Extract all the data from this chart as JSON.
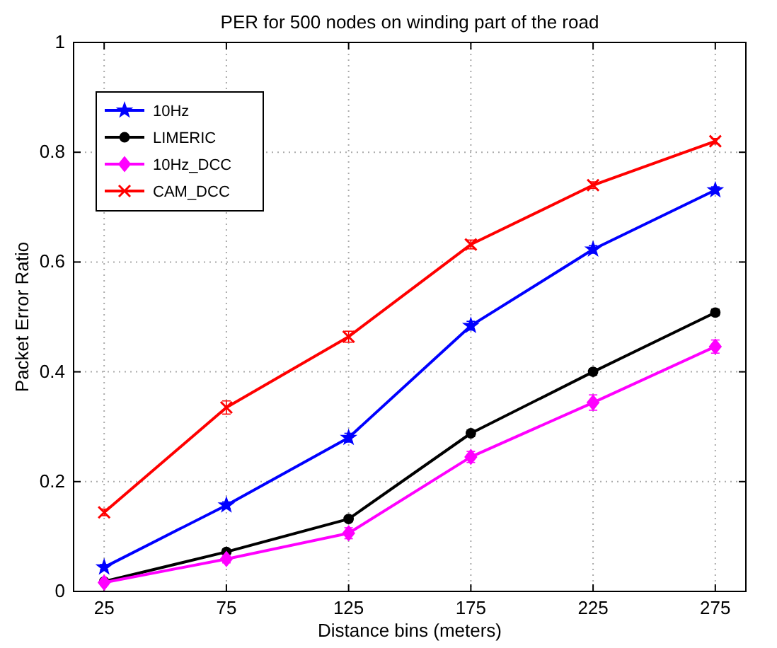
{
  "chart_data": {
    "type": "line",
    "title": "PER for 500 nodes on winding part of the road",
    "xlabel": "Distance bins (meters)",
    "ylabel": "Packet Error Ratio",
    "x": [
      25,
      75,
      125,
      175,
      225,
      275
    ],
    "xlim": [
      12.5,
      287.5
    ],
    "xticks": [
      25,
      75,
      125,
      175,
      225,
      275
    ],
    "ylim": [
      0,
      1
    ],
    "yticks": [
      0,
      0.2,
      0.4,
      0.6,
      0.8,
      1
    ],
    "grid": true,
    "legend": "top left",
    "series": [
      {
        "name": "10Hz",
        "color": "#0000ff",
        "marker": "star",
        "values": [
          0.044,
          0.157,
          0.28,
          0.484,
          0.623,
          0.731
        ],
        "errors": [
          0.005,
          0.006,
          0.008,
          0.008,
          0.007,
          0.006
        ]
      },
      {
        "name": "LIMERIC",
        "color": "#000000",
        "marker": "circle",
        "values": [
          0.018,
          0.072,
          0.132,
          0.288,
          0.4,
          0.508
        ],
        "errors": [
          null,
          0.005,
          0.005,
          0.006,
          0.006,
          0.006
        ]
      },
      {
        "name": "10Hz_DCC",
        "color": "#ff00ff",
        "marker": "diamond",
        "values": [
          0.016,
          0.059,
          0.106,
          0.245,
          0.344,
          0.446
        ],
        "errors": [
          0.005,
          0.007,
          0.01,
          0.01,
          0.014,
          0.012
        ]
      },
      {
        "name": "CAM_DCC",
        "color": "#ff0000",
        "marker": "cross",
        "values": [
          0.144,
          0.335,
          0.464,
          0.632,
          0.74,
          0.82
        ],
        "errors": [
          0.006,
          0.012,
          0.01,
          0.008,
          0.006,
          0.005
        ]
      }
    ]
  }
}
